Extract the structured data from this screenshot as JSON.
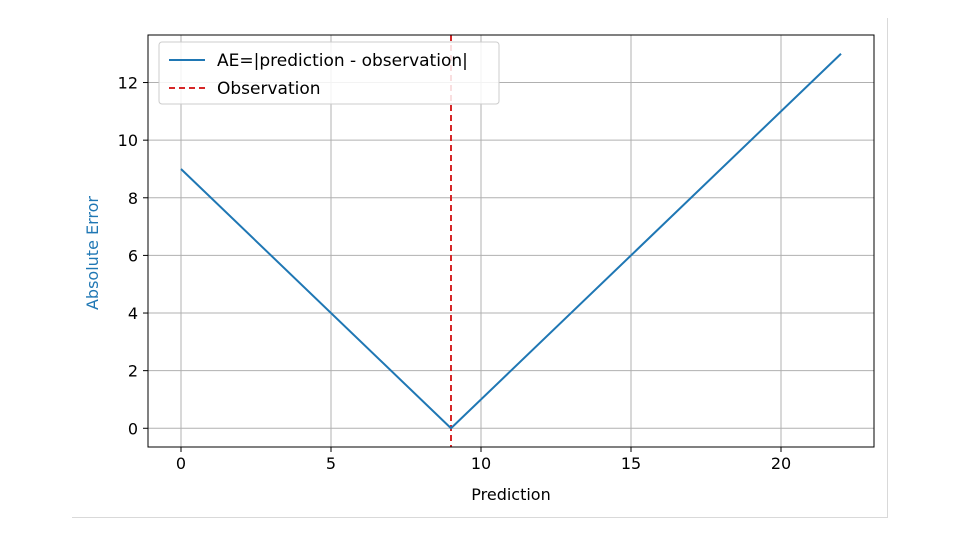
{
  "chart_data": {
    "type": "line",
    "title": "",
    "xlabel": "Prediction",
    "ylabel": "Absolute Error",
    "xlim": [
      -1.1,
      23.1
    ],
    "ylim": [
      -0.65,
      13.65
    ],
    "x_ticks": [
      0,
      5,
      10,
      15,
      20
    ],
    "y_ticks": [
      0,
      2,
      4,
      6,
      8,
      10,
      12
    ],
    "grid": true,
    "legend_position": "top-left",
    "series": [
      {
        "name": "AE=|prediction - observation|",
        "color": "#1f77b4",
        "style": "solid",
        "x": [
          0,
          9,
          22
        ],
        "y": [
          9,
          0,
          13
        ]
      }
    ],
    "vlines": [
      {
        "name": "Observation",
        "x": 9,
        "color": "#d62728",
        "style": "dashed"
      }
    ],
    "ylabel_color": "#1f77b4"
  }
}
